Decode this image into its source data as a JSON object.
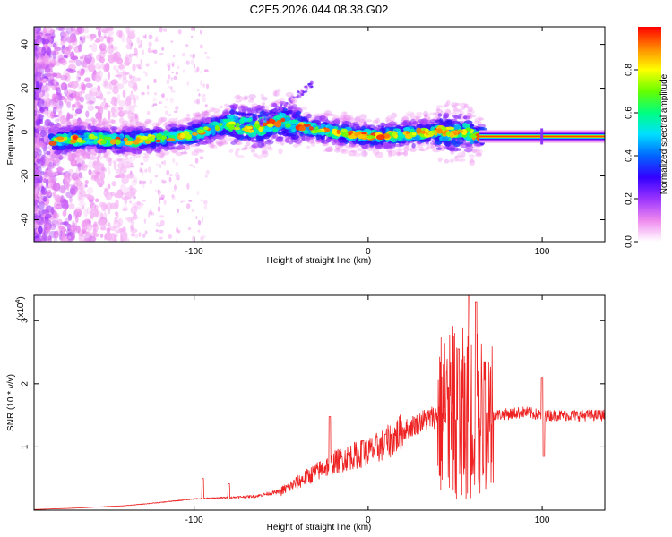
{
  "title": "C2E5.2026.044.08.38.G02",
  "chart_data": [
    {
      "type": "heatmap",
      "title": "C2E5.2026.044.08.38.G02",
      "xlabel": "Height of straight line (km)",
      "ylabel": "Frequency (Hz)",
      "xlim": [
        -192,
        136
      ],
      "ylim": [
        -50,
        48
      ],
      "x_ticks": [
        -100,
        0,
        100
      ],
      "x_tick_labels": [
        "-100",
        "0",
        "100"
      ],
      "y_ticks": [
        -40,
        -20,
        0,
        20,
        40
      ],
      "y_tick_labels": [
        "-40",
        "-20",
        "0",
        "20",
        "40"
      ],
      "colorbar": {
        "label": "Normalized spectral amplitude",
        "range": [
          0,
          1
        ],
        "ticks": [
          0.0,
          0.2,
          0.4,
          0.6,
          0.8
        ],
        "tick_labels": [
          "0.0",
          "0.2",
          "0.4",
          "0.6",
          "0.8"
        ],
        "colors": [
          "#ffffff",
          "#ee88ee",
          "#9933ff",
          "#3300ff",
          "#0066ff",
          "#00e0ff",
          "#00ff80",
          "#66ff00",
          "#ffff00",
          "#ff8800",
          "#ff0000"
        ]
      },
      "band_center_hz": [
        [
          -180,
          -4
        ],
        [
          -160,
          -3
        ],
        [
          -140,
          -4
        ],
        [
          -120,
          -3
        ],
        [
          -100,
          -1
        ],
        [
          -80,
          4
        ],
        [
          -65,
          2
        ],
        [
          -50,
          5
        ],
        [
          -35,
          2
        ],
        [
          -20,
          0
        ],
        [
          0,
          -2
        ],
        [
          20,
          -1
        ],
        [
          40,
          0
        ],
        [
          55,
          0
        ],
        [
          65,
          -2
        ],
        [
          100,
          -2
        ],
        [
          136,
          -2
        ]
      ],
      "grid": false
    },
    {
      "type": "line",
      "xlabel": "Height of straight line (km)",
      "ylabel": "SNR (10 * v/v)",
      "y_multiplier_label": "(x10",
      "y_multiplier_exponent": "4",
      "xlim": [
        -192,
        136
      ],
      "ylim": [
        0,
        3.4
      ],
      "x_ticks": [
        -100,
        0,
        100
      ],
      "x_tick_labels": [
        "-100",
        "0",
        "100"
      ],
      "y_ticks": [
        1,
        2,
        3
      ],
      "y_tick_labels": [
        "1",
        "2",
        "3"
      ],
      "line_color": "#ee2222",
      "envelope": [
        [
          -192,
          0.01
        ],
        [
          -170,
          0.03
        ],
        [
          -140,
          0.07
        ],
        [
          -120,
          0.12
        ],
        [
          -100,
          0.18
        ],
        [
          -80,
          0.2
        ],
        [
          -65,
          0.22
        ],
        [
          -50,
          0.3
        ],
        [
          -40,
          0.45
        ],
        [
          -30,
          0.6
        ],
        [
          -20,
          0.75
        ],
        [
          -10,
          0.85
        ],
        [
          0,
          0.92
        ],
        [
          10,
          1.05
        ],
        [
          20,
          1.25
        ],
        [
          30,
          1.4
        ],
        [
          40,
          1.5
        ],
        [
          50,
          1.55
        ],
        [
          60,
          1.5
        ],
        [
          70,
          1.5
        ],
        [
          80,
          1.52
        ],
        [
          90,
          1.55
        ],
        [
          100,
          1.5
        ],
        [
          110,
          1.5
        ],
        [
          120,
          1.5
        ],
        [
          136,
          1.5
        ]
      ],
      "peaks": [
        [
          -95,
          0.5
        ],
        [
          -80,
          0.42
        ],
        [
          -22,
          1.48
        ],
        [
          -3,
          1.1
        ],
        [
          10,
          1.2
        ],
        [
          46,
          1.95
        ],
        [
          52,
          2.55
        ],
        [
          58,
          3.4
        ],
        [
          62,
          3.3
        ],
        [
          67,
          2.35
        ],
        [
          100,
          2.1
        ],
        [
          101,
          0.85
        ]
      ],
      "grid": false
    }
  ]
}
